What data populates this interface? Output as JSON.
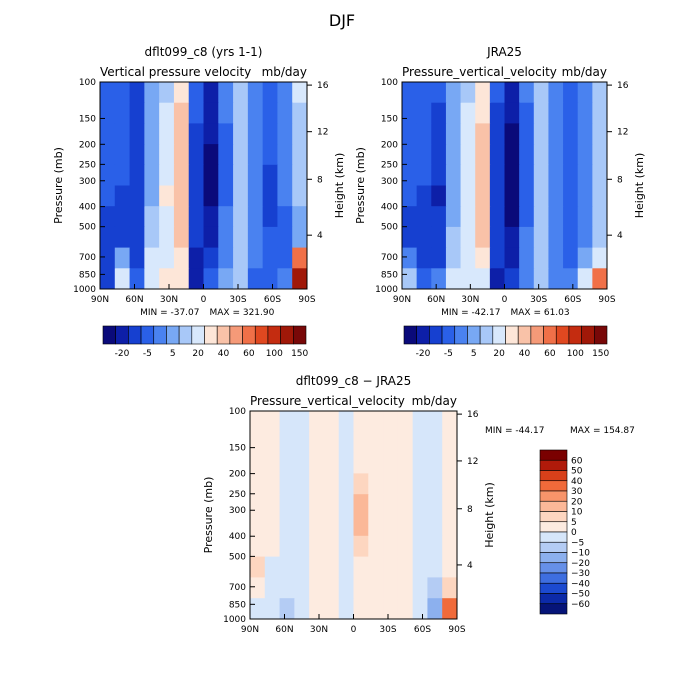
{
  "figure": {
    "title": "DJF"
  },
  "chart_data": [
    {
      "type": "heatmap",
      "title": "dflt099_c8 (yrs 1-1)",
      "subtitle_left": "Vertical pressure velocity",
      "subtitle_right": "mb/day",
      "xlabel": "",
      "ylabel": "Pressure (mb)",
      "ylabel_right": "Height (km)",
      "x_ticks": [
        "90N",
        "60N",
        "30N",
        "0",
        "30S",
        "60S",
        "90S"
      ],
      "y_ticks": [
        "100",
        "150",
        "200",
        "250",
        "300",
        "400",
        "500",
        "700",
        "850",
        "1000"
      ],
      "y_right_ticks": [
        "16",
        "12",
        "8",
        "4"
      ],
      "min_text": "MIN = -37.07",
      "max_text": "MAX = 321.90",
      "colorbar_labels": [
        "-20",
        "-5",
        "5",
        "20",
        "40",
        "60",
        "100",
        "150"
      ],
      "colorbar_colors": [
        "#0a0a7a",
        "#0d1fa8",
        "#1640d0",
        "#2a60e8",
        "#4a82f0",
        "#78a8f4",
        "#a8c8f8",
        "#d8e8fc",
        "#fde6d8",
        "#f9c2a8",
        "#f59a78",
        "#f07048",
        "#e04820",
        "#c42c10",
        "#a01808",
        "#780808"
      ],
      "field": [
        [
          -11,
          -12,
          -17,
          -4,
          4,
          18,
          -12,
          -22,
          -8,
          3,
          -6,
          -13,
          -7,
          6
        ],
        [
          -11,
          -13,
          -18,
          -4,
          6,
          22,
          -14,
          -26,
          -10,
          4,
          -6,
          -13,
          -7,
          4
        ],
        [
          -12,
          -14,
          -19,
          -3,
          8,
          24,
          -16,
          -30,
          -11,
          4,
          -6,
          -14,
          -7,
          2
        ],
        [
          -13,
          -14,
          -20,
          -3,
          8,
          26,
          -17,
          -33,
          -11,
          4,
          -6,
          -15,
          -8,
          1
        ],
        [
          -14,
          -15,
          -20,
          -2,
          9,
          28,
          -17,
          -35,
          -12,
          4,
          -7,
          -16,
          -9,
          1
        ],
        [
          -15,
          -16,
          -20,
          -1,
          10,
          29,
          -18,
          -34,
          -12,
          3,
          -7,
          -16,
          -10,
          0
        ],
        [
          -16,
          -17,
          -19,
          1,
          9,
          26,
          -18,
          -30,
          -10,
          2,
          -8,
          -16,
          -11,
          -2
        ],
        [
          -17,
          -16,
          -18,
          2,
          6,
          22,
          -17,
          -24,
          -9,
          1,
          -8,
          -15,
          -12,
          -4
        ],
        [
          -20,
          -4,
          -17,
          6,
          8,
          18,
          -24,
          -20,
          -6,
          2,
          -10,
          -14,
          -12,
          40
        ],
        [
          -18,
          6,
          -12,
          8,
          10,
          10,
          -30,
          -14,
          -4,
          2,
          -12,
          -12,
          -6,
          120
        ]
      ]
    },
    {
      "type": "heatmap",
      "title": "JRA25",
      "subtitle_left": "Pressure_vertical_velocity",
      "subtitle_right": "mb/day",
      "xlabel": "",
      "ylabel": "Pressure (mb)",
      "ylabel_right": "Height (km)",
      "x_ticks": [
        "90N",
        "60N",
        "30N",
        "0",
        "30S",
        "60S",
        "90S"
      ],
      "y_ticks": [
        "100",
        "150",
        "200",
        "250",
        "300",
        "400",
        "500",
        "700",
        "850",
        "1000"
      ],
      "y_right_ticks": [
        "16",
        "12",
        "8",
        "4"
      ],
      "min_text": "MIN = -42.17",
      "max_text": "MAX =   61.03",
      "colorbar_labels": [
        "-20",
        "-5",
        "5",
        "20",
        "40",
        "60",
        "100",
        "150"
      ],
      "colorbar_colors": [
        "#0a0a7a",
        "#0d1fa8",
        "#1640d0",
        "#2a60e8",
        "#4a82f0",
        "#78a8f4",
        "#a8c8f8",
        "#d8e8fc",
        "#fde6d8",
        "#f9c2a8",
        "#f59a78",
        "#f07048",
        "#e04820",
        "#c42c10",
        "#a01808",
        "#780808"
      ],
      "field": [
        [
          -11,
          -12,
          -15,
          -4,
          4,
          16,
          -14,
          -24,
          -10,
          2,
          -6,
          -12,
          -7,
          4
        ],
        [
          -11,
          -13,
          -16,
          -4,
          5,
          18,
          -16,
          -28,
          -11,
          3,
          -6,
          -12,
          -7,
          4
        ],
        [
          -12,
          -14,
          -17,
          -3,
          6,
          20,
          -18,
          -32,
          -12,
          3,
          -6,
          -13,
          -7,
          3
        ],
        [
          -13,
          -14,
          -18,
          -3,
          6,
          22,
          -19,
          -36,
          -12,
          3,
          -6,
          -14,
          -8,
          3
        ],
        [
          -14,
          -15,
          -20,
          -2,
          7,
          24,
          -20,
          -40,
          -13,
          3,
          -7,
          -15,
          -8,
          3
        ],
        [
          -15,
          -16,
          -22,
          -2,
          8,
          26,
          -20,
          -42,
          -13,
          2,
          -7,
          -15,
          -9,
          3
        ],
        [
          -16,
          -17,
          -20,
          -1,
          7,
          24,
          -19,
          -38,
          -12,
          2,
          -8,
          -15,
          -10,
          2
        ],
        [
          -17,
          -16,
          -18,
          0,
          5,
          20,
          -18,
          -30,
          -10,
          1,
          -8,
          -14,
          -10,
          2
        ],
        [
          -10,
          -16,
          -16,
          2,
          6,
          14,
          -20,
          -24,
          -8,
          1,
          -8,
          -12,
          -4,
          6
        ],
        [
          4,
          -14,
          -10,
          6,
          8,
          8,
          -22,
          -18,
          -6,
          1,
          -8,
          -10,
          6,
          40
        ]
      ]
    },
    {
      "type": "heatmap",
      "title": "dflt099_c8 − JRA25",
      "subtitle_left": "Pressure_vertical_velocity",
      "subtitle_right": "mb/day",
      "xlabel": "",
      "ylabel": "Pressure (mb)",
      "ylabel_right": "Height (km)",
      "x_ticks": [
        "90N",
        "60N",
        "30N",
        "0",
        "30S",
        "60S",
        "90S"
      ],
      "y_ticks": [
        "100",
        "150",
        "200",
        "250",
        "300",
        "400",
        "500",
        "700",
        "850",
        "1000"
      ],
      "y_right_ticks": [
        "16",
        "12",
        "8",
        "4"
      ],
      "min_text": "MIN = -44.17",
      "max_text": "MAX = 154.87",
      "colorbar_labels": [
        "60",
        "50",
        "40",
        "30",
        "20",
        "10",
        "5",
        "0",
        "−5",
        "−10",
        "−20",
        "−30",
        "−40",
        "−50",
        "−60"
      ],
      "colorbar_colors": [
        "#7a0000",
        "#b01a0a",
        "#d8401a",
        "#f06a3a",
        "#f8946a",
        "#fbb898",
        "#fdd6c0",
        "#fdebe0",
        "#d6e6fa",
        "#b4ccf4",
        "#8cb0ee",
        "#6690e8",
        "#3e6ee0",
        "#1c4ad0",
        "#0c2aa8",
        "#061478"
      ],
      "field": [
        [
          1,
          1,
          -1,
          -1,
          1,
          1,
          -1,
          1,
          1,
          1,
          1,
          -1,
          -1,
          1
        ],
        [
          1,
          1,
          -1,
          -1,
          1,
          2,
          -1,
          1,
          1,
          1,
          1,
          -1,
          -1,
          1
        ],
        [
          1,
          1,
          -1,
          -1,
          1,
          2,
          -1,
          2,
          1,
          1,
          1,
          -1,
          -1,
          1
        ],
        [
          1,
          1,
          -2,
          -1,
          1,
          3,
          -2,
          6,
          1,
          1,
          1,
          -1,
          -1,
          1
        ],
        [
          1,
          1,
          -2,
          -1,
          1,
          4,
          -2,
          12,
          2,
          1,
          1,
          -1,
          -1,
          1
        ],
        [
          1,
          1,
          -2,
          -1,
          1,
          3,
          -2,
          14,
          2,
          1,
          1,
          -1,
          -1,
          1
        ],
        [
          2,
          1,
          -2,
          -1,
          1,
          2,
          -1,
          8,
          1,
          1,
          1,
          -1,
          -2,
          1
        ],
        [
          6,
          -1,
          -3,
          -2,
          1,
          2,
          -1,
          4,
          1,
          1,
          1,
          -1,
          -3,
          1
        ],
        [
          2,
          -2,
          -4,
          -2,
          1,
          2,
          -3,
          2,
          1,
          1,
          1,
          -2,
          -8,
          8
        ],
        [
          -1,
          -3,
          -6,
          -2,
          1,
          2,
          -4,
          2,
          1,
          1,
          1,
          -2,
          -20,
          30
        ]
      ]
    }
  ]
}
